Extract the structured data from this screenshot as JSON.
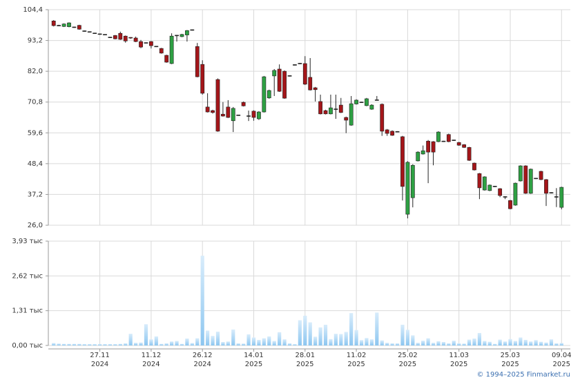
{
  "chart_data": [
    {
      "type": "candlestick",
      "up_color": "#2ea043",
      "down_color": "#a4161a",
      "outline_color": "#222",
      "ylim": [
        26.0,
        104.4
      ],
      "yticks": [
        {
          "value": 26.0,
          "label": "26,0"
        },
        {
          "value": 37.2,
          "label": "37,2"
        },
        {
          "value": 48.4,
          "label": "48,4"
        },
        {
          "value": 59.6,
          "label": "59,6"
        },
        {
          "value": 70.8,
          "label": "70,8"
        },
        {
          "value": 82.0,
          "label": "82,0"
        },
        {
          "value": 93.2,
          "label": "93,2"
        },
        {
          "value": 104.4,
          "label": "104,4"
        }
      ],
      "grid": true,
      "open": [
        100.3,
        98.6,
        98.3,
        98.2,
        98.0,
        98.7,
        96.6,
        96.3,
        95.8,
        95.5,
        95.3,
        94.3,
        95.0,
        95.8,
        94.8,
        94.2,
        94.1,
        92.8,
        92.3,
        92.8,
        91.0,
        90.3,
        87.8,
        84.8,
        95.0,
        94.6,
        95.2,
        97.0,
        91.0,
        84.5,
        69.0,
        67.7,
        79.0,
        66.4,
        69.0,
        64.0,
        66.0,
        70.7,
        65.7,
        67.5,
        64.7,
        67.2,
        72.3,
        80.3,
        82.8,
        82.0,
        80.3,
        84.3,
        84.8,
        84.8,
        79.8,
        76.0,
        71.0,
        67.7,
        66.5,
        68.2,
        69.7,
        65.2,
        62.4,
        70.1,
        70.7,
        69.5,
        68.2,
        71.5,
        70.0,
        60.7,
        60.2,
        60.0,
        58.2,
        30.0,
        36.0,
        49.4,
        51.9,
        56.6,
        56.4,
        56.4,
        56.5,
        59.0,
        56.9,
        56.1,
        55.3,
        54.3,
        48.6,
        44.8,
        38.8,
        38.6,
        40.1,
        39.3,
        36.3,
        35.0,
        33.3,
        42.1,
        47.6,
        37.6,
        43.0,
        45.6,
        42.6,
        37.8,
        36.3,
        32.5
      ],
      "high": [
        100.6,
        98.9,
        99.4,
        99.8,
        98.2,
        98.9,
        96.8,
        96.5,
        96.0,
        95.7,
        95.5,
        94.5,
        95.2,
        96.4,
        95.0,
        94.4,
        94.6,
        93.4,
        92.5,
        93.0,
        91.2,
        90.5,
        88.0,
        95.8,
        95.2,
        95.6,
        97.0,
        97.2,
        92.3,
        86.0,
        74.0,
        68.0,
        79.4,
        70.8,
        71.5,
        69.0,
        66.2,
        71.0,
        67.7,
        67.8,
        67.5,
        80.3,
        75.3,
        82.8,
        84.5,
        82.3,
        80.5,
        84.5,
        85.0,
        87.5,
        86.8,
        76.3,
        73.5,
        68.0,
        73.5,
        73.5,
        72.3,
        65.5,
        73.0,
        71.8,
        70.9,
        72.3,
        70.0,
        73.0,
        70.3,
        61.0,
        60.5,
        60.2,
        58.5,
        49.3,
        48.2,
        52.9,
        55.0,
        57.0,
        56.6,
        60.2,
        56.7,
        59.3,
        57.1,
        56.3,
        55.5,
        54.5,
        48.8,
        45.0,
        43.8,
        40.8,
        40.3,
        39.5,
        36.5,
        35.2,
        41.5,
        47.8,
        47.8,
        46.6,
        43.2,
        45.8,
        42.8,
        38.0,
        39.5,
        40.0
      ],
      "low": [
        98.3,
        98.4,
        98.1,
        98.0,
        97.8,
        97.1,
        96.4,
        96.1,
        95.6,
        95.3,
        95.1,
        94.1,
        93.6,
        93.4,
        92.4,
        93.8,
        92.6,
        90.4,
        92.1,
        90.3,
        90.8,
        88.4,
        85.1,
        84.6,
        92.8,
        94.4,
        92.8,
        96.8,
        79.8,
        73.5,
        67.0,
        66.6,
        60.0,
        65.5,
        65.0,
        59.9,
        65.8,
        69.2,
        63.9,
        64.0,
        64.3,
        67.0,
        72.0,
        73.0,
        74.5,
        72.0,
        80.1,
        84.1,
        84.6,
        77.0,
        75.0,
        71.0,
        66.3,
        66.3,
        66.3,
        64.7,
        66.8,
        59.5,
        62.2,
        69.9,
        70.5,
        69.3,
        68.0,
        71.3,
        58.5,
        58.5,
        58.5,
        59.8,
        35.0,
        28.5,
        32.5,
        49.2,
        51.7,
        41.3,
        47.8,
        56.2,
        56.3,
        56.2,
        56.7,
        54.9,
        54.1,
        49.4,
        45.9,
        35.5,
        38.6,
        38.4,
        39.9,
        36.2,
        35.5,
        31.8,
        33.1,
        41.9,
        37.4,
        37.4,
        42.8,
        42.4,
        33.0,
        37.6,
        32.6,
        31.8
      ],
      "close": [
        98.6,
        98.6,
        99.2,
        99.6,
        98.0,
        97.3,
        96.6,
        96.3,
        95.8,
        95.5,
        95.3,
        94.3,
        93.8,
        93.6,
        93.0,
        94.0,
        92.8,
        90.8,
        92.3,
        91.3,
        91.0,
        88.6,
        85.3,
        94.8,
        95.0,
        95.4,
        96.8,
        97.0,
        80.0,
        74.0,
        67.2,
        67.0,
        60.2,
        65.7,
        65.2,
        68.5,
        66.0,
        69.4,
        65.7,
        65.2,
        67.2,
        80.0,
        75.0,
        82.3,
        74.7,
        72.2,
        80.3,
        84.3,
        84.8,
        77.3,
        75.2,
        75.3,
        66.5,
        66.5,
        68.7,
        68.2,
        67.0,
        64.2,
        70.2,
        71.5,
        70.7,
        72.0,
        69.7,
        71.5,
        60.2,
        59.4,
        58.7,
        60.0,
        40.1,
        48.9,
        47.8,
        52.6,
        53.1,
        52.6,
        52.6,
        59.9,
        56.5,
        56.4,
        56.9,
        55.1,
        54.3,
        49.6,
        46.1,
        39.6,
        43.6,
        40.6,
        40.1,
        36.8,
        36.3,
        32.0,
        41.3,
        47.6,
        37.6,
        46.4,
        43.0,
        42.6,
        37.6,
        37.8,
        36.3,
        39.8
      ]
    },
    {
      "type": "bar",
      "color": "#8cc6f0",
      "ylim": [
        0,
        3930
      ],
      "yticks": [
        {
          "value": 0,
          "label": "0,00 тыс"
        },
        {
          "value": 1310,
          "label": "1,31 тыс"
        },
        {
          "value": 2620,
          "label": "2,62 тыс"
        },
        {
          "value": 3930,
          "label": "3,93 тыс"
        }
      ],
      "grid": true,
      "values": [
        90,
        70,
        60,
        60,
        60,
        60,
        50,
        50,
        50,
        50,
        50,
        50,
        50,
        60,
        80,
        440,
        100,
        110,
        800,
        230,
        340,
        60,
        80,
        150,
        170,
        60,
        260,
        90,
        270,
        3380,
        560,
        360,
        520,
        130,
        150,
        600,
        80,
        70,
        420,
        300,
        210,
        270,
        340,
        170,
        500,
        230,
        80,
        50,
        950,
        1120,
        870,
        330,
        680,
        780,
        240,
        440,
        430,
        510,
        1220,
        580,
        200,
        280,
        230,
        1240,
        190,
        100,
        80,
        80,
        780,
        590,
        380,
        100,
        180,
        270,
        100,
        160,
        130,
        80,
        180,
        80,
        70,
        220,
        260,
        470,
        170,
        140,
        60,
        220,
        150,
        240,
        170,
        300,
        210,
        150,
        200,
        140,
        110,
        230,
        80,
        90
      ],
      "x_labels": [
        {
          "index": 9,
          "date": "27.11",
          "year": "2024"
        },
        {
          "index": 19,
          "date": "11.12",
          "year": "2024"
        },
        {
          "index": 29,
          "date": "26.12",
          "year": "2024"
        },
        {
          "index": 39,
          "date": "14.01",
          "year": "2025"
        },
        {
          "index": 49,
          "date": "28.01",
          "year": "2025"
        },
        {
          "index": 59,
          "date": "11.02",
          "year": "2025"
        },
        {
          "index": 69,
          "date": "25.02",
          "year": "2025"
        },
        {
          "index": 79,
          "date": "11.03",
          "year": "2025"
        },
        {
          "index": 89,
          "date": "25.03",
          "year": "2025"
        },
        {
          "index": 99,
          "date": "09.04",
          "year": "2025"
        }
      ]
    }
  ],
  "footer": "© 1994–2025 Finmarket.ru"
}
